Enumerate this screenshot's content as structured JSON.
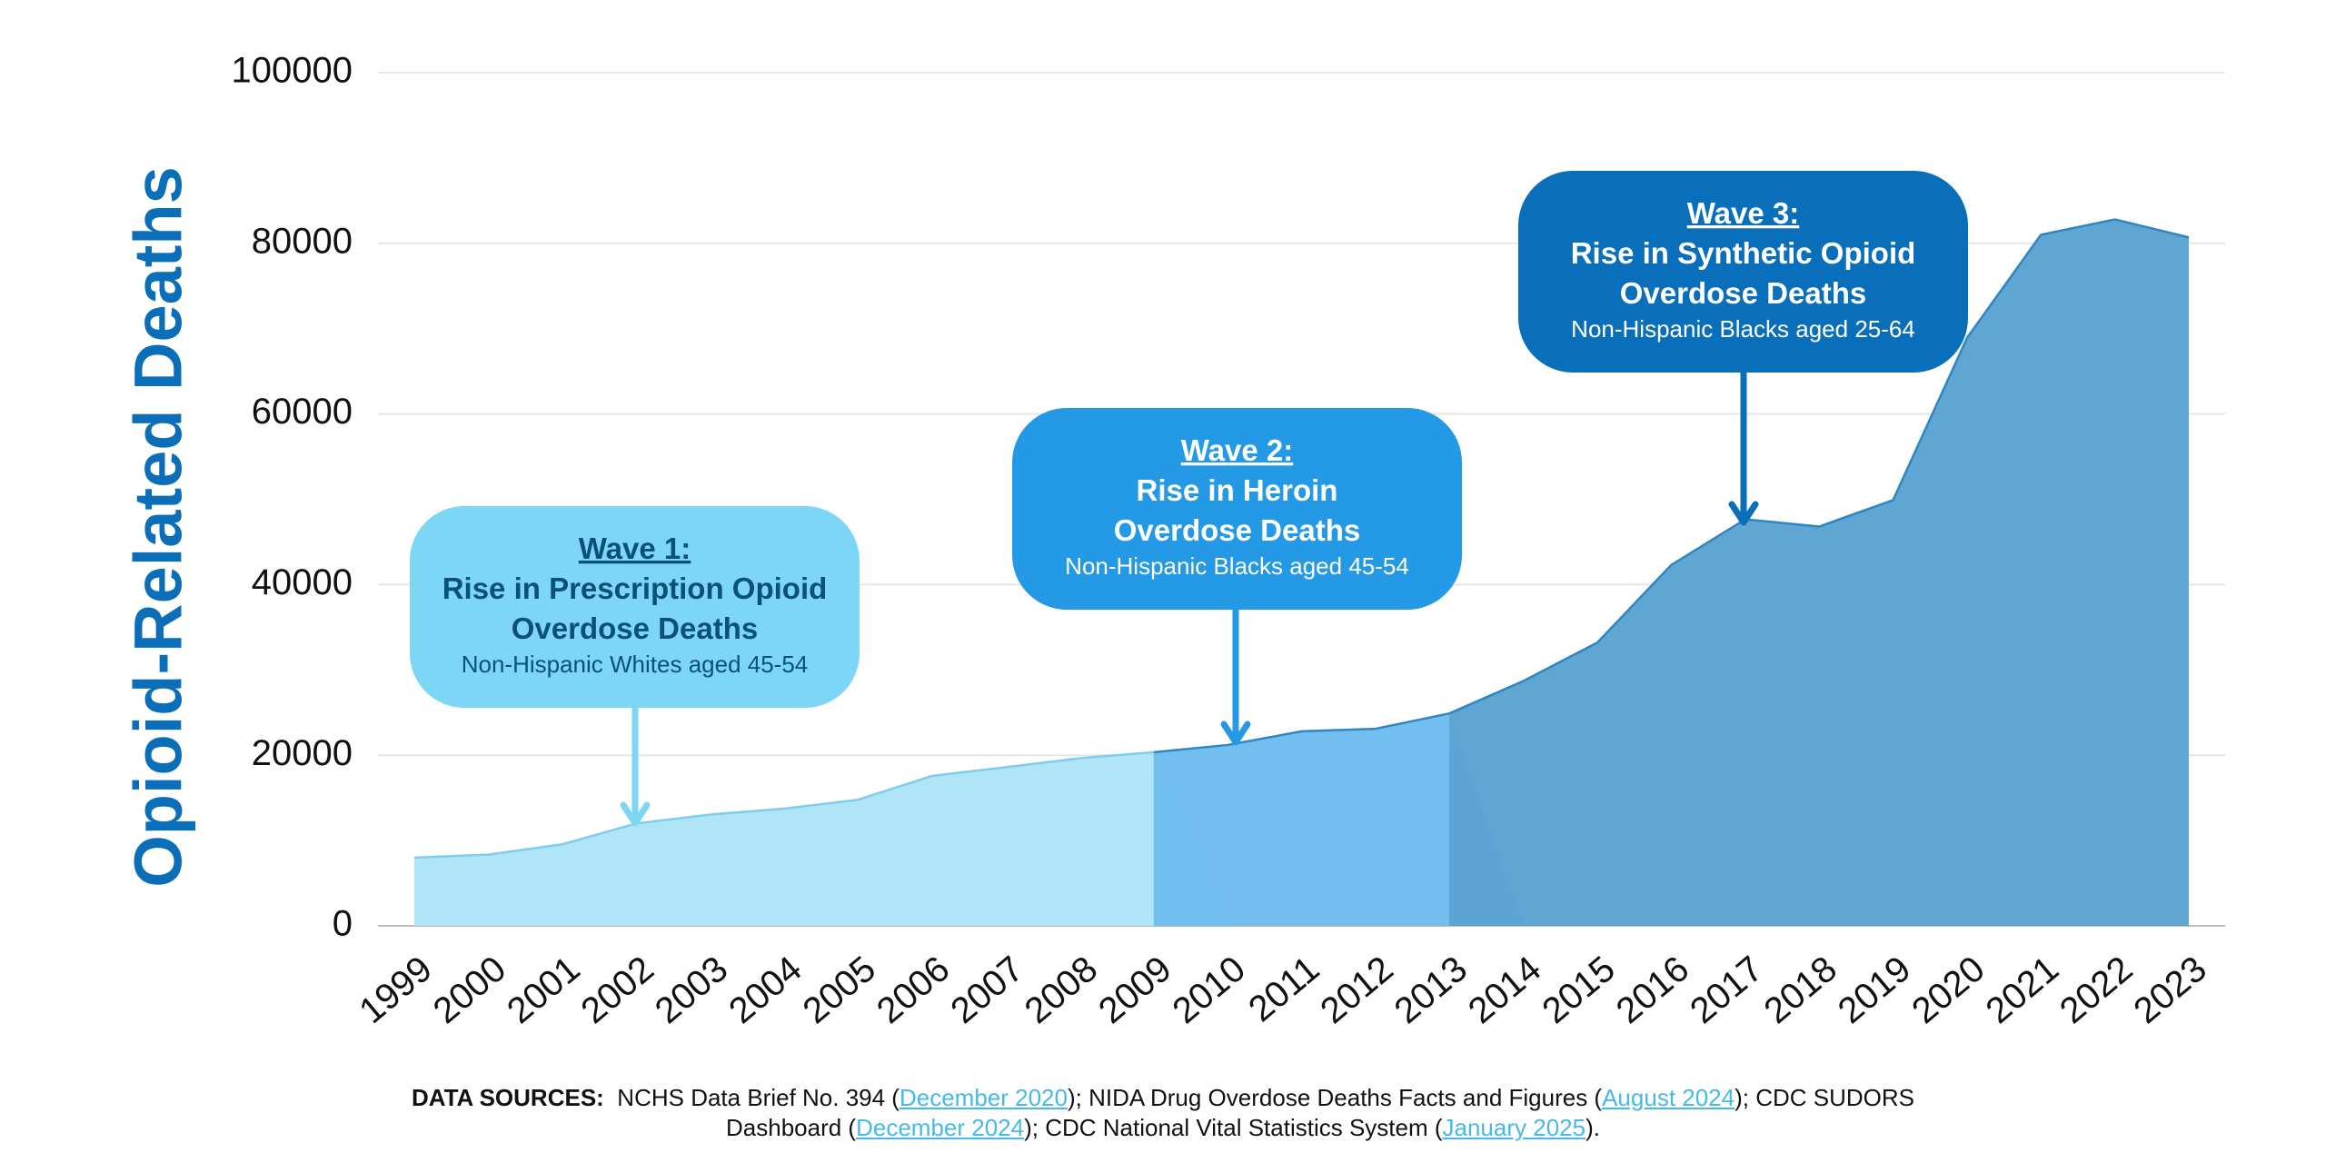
{
  "chart_data": {
    "type": "area",
    "y_label": "Opioid-Related Deaths",
    "categories": [
      "1999",
      "2000",
      "2001",
      "2002",
      "2003",
      "2004",
      "2005",
      "2006",
      "2007",
      "2008",
      "2009",
      "2010",
      "2011",
      "2012",
      "2013",
      "2014",
      "2015",
      "2016",
      "2017",
      "2018",
      "2019",
      "2020",
      "2021",
      "2022",
      "2023"
    ],
    "series": [
      {
        "color": "#ace4f7",
        "values": [
          8000,
          8350,
          9560,
          12000,
          13040,
          13740,
          14780,
          17570,
          18600,
          19650,
          20350,
          null,
          null,
          null,
          null,
          null,
          null,
          null,
          null,
          null,
          null,
          null,
          null,
          null,
          null
        ]
      },
      {
        "color": "#6dbdee",
        "values": [
          null,
          null,
          null,
          null,
          null,
          null,
          null,
          null,
          null,
          null,
          20350,
          21200,
          22800,
          23100,
          24900,
          null,
          null,
          null,
          null,
          null,
          null,
          null,
          null,
          null,
          null
        ]
      },
      {
        "color": "#5aa3d2",
        "values": [
          null,
          null,
          null,
          null,
          null,
          null,
          null,
          null,
          null,
          null,
          null,
          null,
          null,
          null,
          24900,
          28700,
          33200,
          42300,
          47650,
          46800,
          49900,
          68900,
          81000,
          82800,
          80700
        ]
      }
    ],
    "ylim": [
      0,
      100000
    ],
    "yticks": [
      0,
      20000,
      40000,
      60000,
      80000,
      100000
    ],
    "grid": true,
    "annotations": [
      {
        "title": "Wave 1:",
        "lines": [
          "Rise in Prescription Opioid",
          "Overdose Deaths"
        ],
        "population": "Non-Hispanic Whites aged 45-54",
        "color": "#7dd6f5",
        "text_color": "#0b4f7c"
      },
      {
        "title": "Wave 2:",
        "lines": [
          "Rise in Heroin",
          "Overdose Deaths"
        ],
        "population": "Non-Hispanic Blacks aged 45-54",
        "color": "#2499e6",
        "text_color": "#ffffff"
      },
      {
        "title": "Wave 3:",
        "lines": [
          "Rise in Synthetic Opioid",
          "Overdose Deaths"
        ],
        "population": "Non-Hispanic Blacks aged 25-64",
        "color": "#0a6fbb",
        "text_color": "#ffffff"
      }
    ]
  },
  "footer": {
    "label": "DATA SOURCES:",
    "parts": [
      "NCHS Data Brief No. 394 (",
      "); NIDA Drug Overdose Deaths Facts and Figures (",
      ");  CDC SUDORS Dashboard (",
      "); CDC National Vital Statistics System (",
      ")."
    ],
    "links": [
      "December 2020",
      "August 2024",
      "December 2024",
      "January 2025"
    ]
  }
}
